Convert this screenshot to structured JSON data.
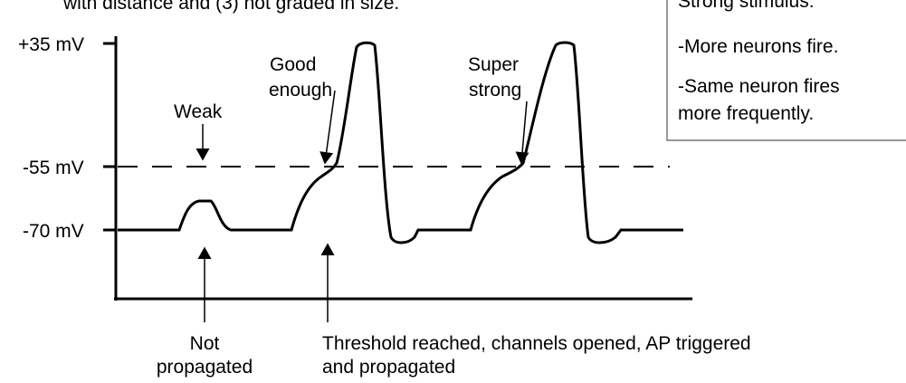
{
  "header": {
    "text": "with distance and (3) not graded in size."
  },
  "box": {
    "lines": [
      "Strong stimulus:",
      "-More neurons fire.",
      "-Same neuron fires",
      "more frequently."
    ]
  },
  "axis": {
    "labels": [
      "+35 mV",
      "-55 mV",
      "-70 mV"
    ]
  },
  "annotations": {
    "weak": "Weak",
    "good_enough": [
      "Good",
      "enough"
    ],
    "super_strong": [
      "Super",
      "strong"
    ],
    "not_propagated": [
      "Not",
      "propagated"
    ],
    "threshold": [
      "Threshold reached, channels opened, AP triggered",
      "and propagated"
    ]
  }
}
